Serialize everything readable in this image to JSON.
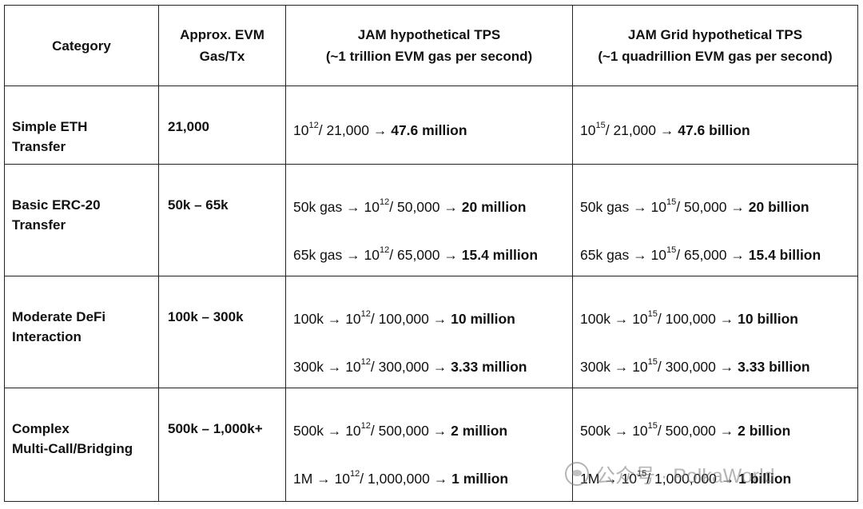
{
  "headers": {
    "category": "Category",
    "gas_line1": "Approx. EVM",
    "gas_line2": "Gas/Tx",
    "jam_line1": "JAM hypothetical TPS",
    "jam_line2": "(~1 trillion EVM gas per second)",
    "grid_line1": "JAM Grid hypothetical TPS",
    "grid_line2": "(~1 quadrillion EVM gas per second)"
  },
  "rows": [
    {
      "cat_line1": "Simple ETH",
      "cat_line2": "Transfer",
      "gas": "21,000",
      "jam": [
        {
          "pre": "",
          "base": "10",
          "exp": "12",
          "div": "/ 21,000 →",
          "result": "47.6 million"
        }
      ],
      "grid": [
        {
          "pre": "",
          "base": "10",
          "exp": "15",
          "div": "/ 21,000 →",
          "result": "47.6 billion"
        }
      ]
    },
    {
      "cat_line1": "Basic ERC-20",
      "cat_line2": "Transfer",
      "gas": "50k – 65k",
      "jam": [
        {
          "pre": "50k gas →",
          "base": "10",
          "exp": "12",
          "div": "/ 50,000 →",
          "result": "20 million"
        },
        {
          "pre": "65k gas →",
          "base": "10",
          "exp": "12",
          "div": "/ 65,000 →",
          "result": "15.4 million"
        }
      ],
      "grid": [
        {
          "pre": "50k gas →",
          "base": "10",
          "exp": "15",
          "div": "/ 50,000 →",
          "result": "20 billion"
        },
        {
          "pre": "65k gas →",
          "base": "10",
          "exp": "15",
          "div": "/ 65,000 →",
          "result": "15.4 billion"
        }
      ]
    },
    {
      "cat_line1": "Moderate DeFi",
      "cat_line2": "Interaction",
      "gas": "100k – 300k",
      "jam": [
        {
          "pre": "100k →",
          "base": "10",
          "exp": "12",
          "div": "/ 100,000 →",
          "result": "10 million"
        },
        {
          "pre": "300k →",
          "base": "10",
          "exp": "12",
          "div": "/ 300,000 →",
          "result": "3.33 million"
        }
      ],
      "grid": [
        {
          "pre": "100k →",
          "base": "10",
          "exp": "15",
          "div": "/ 100,000 →",
          "result": "10 billion"
        },
        {
          "pre": "300k →",
          "base": "10",
          "exp": "15",
          "div": "/ 300,000 →",
          "result": "3.33 billion"
        }
      ]
    },
    {
      "cat_line1": "Complex",
      "cat_line2": "Multi-Call/Bridging",
      "gas": "500k – 1,000k+",
      "jam": [
        {
          "pre": "500k →",
          "base": "10",
          "exp": "12",
          "div": "/ 500,000 →",
          "result": "2 million"
        },
        {
          "pre": "1M →",
          "base": "10",
          "exp": "12",
          "div": "/ 1,000,000 →",
          "result": "1 million"
        }
      ],
      "grid": [
        {
          "pre": "500k →",
          "base": "10",
          "exp": "15",
          "div": "/ 500,000 →",
          "result": "2 billion"
        },
        {
          "pre": "1M →",
          "base": "10",
          "exp": "15",
          "div": "/ 1,000,000 →",
          "result": "1 billion"
        }
      ]
    }
  ],
  "watermark": {
    "text": "公众号 · PolkaWorld",
    "icon": "wechat-icon"
  }
}
